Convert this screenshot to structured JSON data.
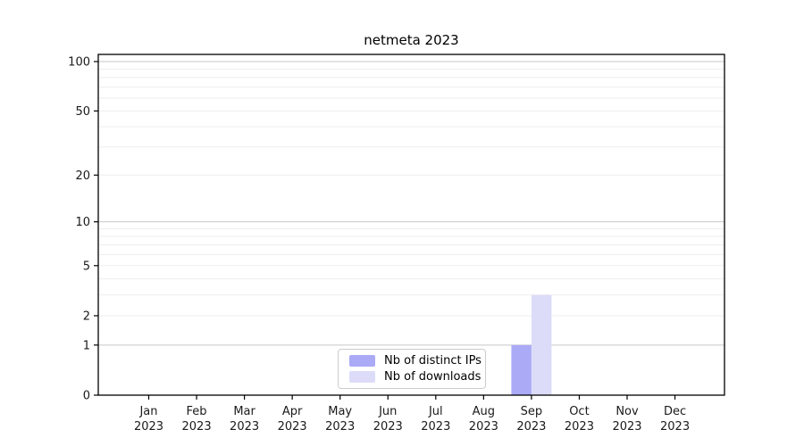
{
  "chart_data": {
    "type": "bar",
    "title": "netmeta 2023",
    "categories": [
      "Jan",
      "Feb",
      "Mar",
      "Apr",
      "May",
      "Jun",
      "Jul",
      "Aug",
      "Sep",
      "Oct",
      "Nov",
      "Dec"
    ],
    "category_year": "2023",
    "series": [
      {
        "name": "Nb of distinct IPs",
        "color": "#aaaaf7",
        "values": [
          0,
          0,
          0,
          0,
          0,
          0,
          0,
          0,
          1,
          0,
          0,
          0
        ]
      },
      {
        "name": "Nb of downloads",
        "color": "#dcdcf9",
        "values": [
          0,
          0,
          0,
          0,
          0,
          0,
          0,
          0,
          3,
          0,
          0,
          0
        ]
      }
    ],
    "yscale": "log1p",
    "ylim": [
      0,
      110
    ],
    "yticks": [
      0,
      1,
      2,
      5,
      10,
      20,
      50,
      100
    ],
    "grid_major_values": [
      1,
      10,
      100
    ],
    "grid_minor_values": [
      2,
      3,
      4,
      5,
      6,
      7,
      8,
      9,
      20,
      30,
      40,
      50,
      60,
      70,
      80,
      90
    ],
    "grid": "horizontal",
    "legend_position": "lower center"
  },
  "colors": {
    "axis_frame": "#000000",
    "tick_label": "#1a1a1a",
    "grid_major": "#c8c8c8",
    "grid_minor": "#ededed",
    "background": "#ffffff",
    "legend_border": "#cccccc"
  }
}
